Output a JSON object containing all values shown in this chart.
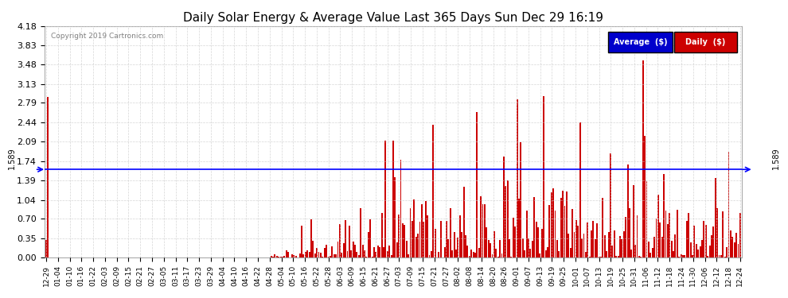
{
  "title": "Daily Solar Energy & Average Value Last 365 Days Sun Dec 29 16:19",
  "copyright": "Copyright 2019 Cartronics.com",
  "average_value": 1.589,
  "average_label": "1.589",
  "ylim": [
    0.0,
    4.18
  ],
  "yticks": [
    0.0,
    0.35,
    0.7,
    1.04,
    1.39,
    1.74,
    2.09,
    2.44,
    2.79,
    3.13,
    3.48,
    3.83,
    4.18
  ],
  "bar_color": "#cc0000",
  "avg_line_color": "blue",
  "background_color": "#ffffff",
  "grid_color": "#cccccc",
  "legend_avg_bg": "#0000cc",
  "legend_daily_bg": "#cc0000",
  "legend_avg_text": "Average  ($)",
  "legend_daily_text": "Daily  ($)",
  "xtick_labels": [
    "12-29",
    "01-04",
    "01-10",
    "01-16",
    "01-22",
    "02-03",
    "02-09",
    "02-15",
    "02-21",
    "02-27",
    "03-05",
    "03-11",
    "03-17",
    "03-23",
    "03-29",
    "04-04",
    "04-10",
    "04-16",
    "04-22",
    "04-28",
    "05-04",
    "05-10",
    "05-16",
    "05-22",
    "05-28",
    "06-03",
    "06-09",
    "06-15",
    "06-21",
    "06-27",
    "07-03",
    "07-09",
    "07-15",
    "07-21",
    "07-27",
    "08-02",
    "08-08",
    "08-14",
    "08-20",
    "08-26",
    "09-01",
    "09-07",
    "09-13",
    "09-19",
    "09-25",
    "10-01",
    "10-07",
    "10-13",
    "10-19",
    "10-25",
    "10-31",
    "11-06",
    "11-12",
    "11-18",
    "11-24",
    "11-30",
    "12-06",
    "12-12",
    "12-18",
    "12-24"
  ],
  "n_bars": 365,
  "seed": 42,
  "figsize": [
    9.9,
    3.75
  ],
  "dpi": 100
}
